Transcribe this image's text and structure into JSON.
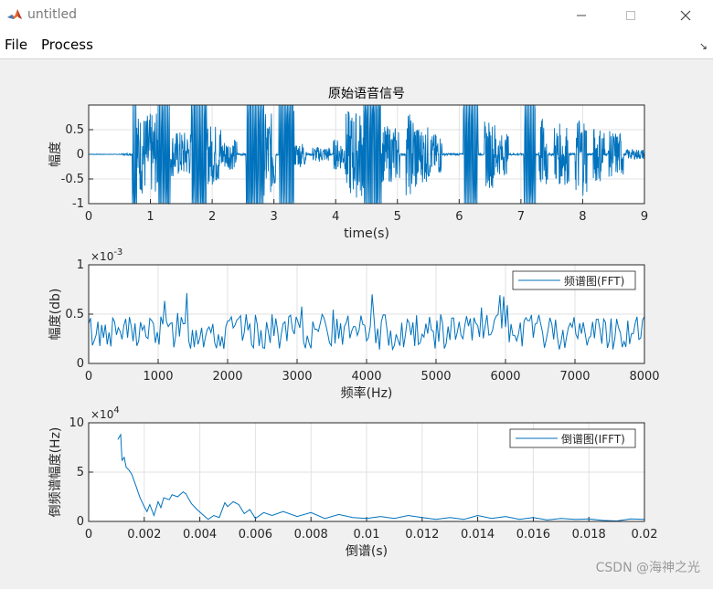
{
  "window": {
    "title": "untitled",
    "minimize_icon": "minimize-icon",
    "maximize_icon": "maximize-icon",
    "close_icon": "close-icon",
    "app_icon": "matlab-icon"
  },
  "menu": {
    "items": [
      "File",
      "Process"
    ],
    "dock_icon": "dock-arrow-icon"
  },
  "colors": {
    "line": "#0072bd",
    "grid": "#e2e2e2",
    "axes_bg": "#ffffff",
    "figure_bg": "#f0f0f0"
  },
  "chart_data": [
    {
      "type": "line",
      "title": "原始语音信号",
      "xlabel": "time(s)",
      "ylabel": "幅度",
      "xlim": [
        0,
        9.2
      ],
      "ylim": [
        -1,
        1
      ],
      "xticks": [
        "0",
        "1",
        "2",
        "3",
        "4",
        "5",
        "6",
        "7",
        "8",
        "9"
      ],
      "yticks": [
        "-1",
        "-0.5",
        "0",
        "0.5"
      ],
      "description_series": "speech waveform",
      "bursts": [
        {
          "start": 0.72,
          "end": 0.8,
          "amp": 1.0
        },
        {
          "start": 0.8,
          "end": 1.15,
          "amp": 0.8
        },
        {
          "start": 1.15,
          "end": 1.35,
          "amp": 1.0
        },
        {
          "start": 1.35,
          "end": 1.7,
          "amp": 0.45
        },
        {
          "start": 1.7,
          "end": 1.95,
          "amp": 1.0
        },
        {
          "start": 1.95,
          "end": 2.2,
          "amp": 0.6
        },
        {
          "start": 2.2,
          "end": 2.45,
          "amp": 0.3
        },
        {
          "start": 2.6,
          "end": 2.9,
          "amp": 1.0
        },
        {
          "start": 2.9,
          "end": 3.1,
          "amp": 0.8
        },
        {
          "start": 3.15,
          "end": 3.4,
          "amp": 1.0
        },
        {
          "start": 3.4,
          "end": 3.6,
          "amp": 0.25
        },
        {
          "start": 3.7,
          "end": 4.0,
          "amp": 0.15
        },
        {
          "start": 4.05,
          "end": 4.25,
          "amp": 0.3
        },
        {
          "start": 4.25,
          "end": 4.55,
          "amp": 0.85
        },
        {
          "start": 4.55,
          "end": 4.85,
          "amp": 1.0
        },
        {
          "start": 4.85,
          "end": 5.15,
          "amp": 0.55
        },
        {
          "start": 5.25,
          "end": 5.45,
          "amp": 0.8
        },
        {
          "start": 5.45,
          "end": 5.65,
          "amp": 0.55
        },
        {
          "start": 5.65,
          "end": 5.85,
          "amp": 0.4
        },
        {
          "start": 6.2,
          "end": 6.45,
          "amp": 0.9
        },
        {
          "start": 6.55,
          "end": 6.75,
          "amp": 0.65
        },
        {
          "start": 6.75,
          "end": 6.95,
          "amp": 0.4
        },
        {
          "start": 7.2,
          "end": 7.4,
          "amp": 1.0
        },
        {
          "start": 7.45,
          "end": 7.6,
          "amp": 0.7
        },
        {
          "start": 7.7,
          "end": 7.95,
          "amp": 0.6
        },
        {
          "start": 8.05,
          "end": 8.25,
          "amp": 0.8
        },
        {
          "start": 8.35,
          "end": 8.55,
          "amp": 0.55
        },
        {
          "start": 8.6,
          "end": 8.85,
          "amp": 0.45
        },
        {
          "start": 8.9,
          "end": 9.2,
          "amp": 0.1
        }
      ],
      "noise_amp": 0.02,
      "seed": 7
    },
    {
      "type": "line",
      "title": "",
      "xlabel": "频率(Hz)",
      "ylabel": "幅度(db)",
      "xlim": [
        0,
        8000
      ],
      "ylim": [
        0,
        0.001
      ],
      "exponent_label": "×10",
      "exponent_power": "-3",
      "xticks": [
        "0",
        "1000",
        "2000",
        "3000",
        "4000",
        "5000",
        "6000",
        "7000",
        "8000"
      ],
      "yticks": [
        "0",
        "0.5",
        "1"
      ],
      "legend": "频谱图(FFT)",
      "legend_position": "top-right",
      "mean": 0.00032,
      "spread": 0.00018,
      "num_points": 300,
      "seed": 13
    },
    {
      "type": "line",
      "title": "",
      "xlabel": "倒谱(s)",
      "ylabel": "倒频谱幅度(Hz)",
      "xlim": [
        0,
        0.02
      ],
      "ylim": [
        0,
        100000
      ],
      "exponent_label": "×10",
      "exponent_power": "4",
      "xticks": [
        "0",
        "0.002",
        "0.004",
        "0.006",
        "0.008",
        "0.01",
        "0.012",
        "0.014",
        "0.016",
        "0.018",
        "0.02"
      ],
      "yticks": [
        "0",
        "5",
        "10"
      ],
      "legend": "倒谱图(IFFT)",
      "legend_position": "top-right",
      "x": [
        0.00105,
        0.00115,
        0.0012,
        0.00128,
        0.00135,
        0.00145,
        0.00155,
        0.0017,
        0.00185,
        0.002,
        0.0021,
        0.0022,
        0.00235,
        0.0025,
        0.0026,
        0.0027,
        0.0029,
        0.003,
        0.0032,
        0.0034,
        0.0035,
        0.0037,
        0.0039,
        0.0041,
        0.0043,
        0.0045,
        0.0047,
        0.0049,
        0.005,
        0.0052,
        0.0054,
        0.0056,
        0.0058,
        0.006,
        0.0063,
        0.0066,
        0.007,
        0.0075,
        0.008,
        0.0085,
        0.009,
        0.0095,
        0.01,
        0.0105,
        0.011,
        0.0115,
        0.012,
        0.0125,
        0.013,
        0.0135,
        0.014,
        0.0145,
        0.015,
        0.0155,
        0.016,
        0.0165,
        0.017,
        0.0175,
        0.018,
        0.0185,
        0.019,
        0.0195,
        0.02
      ],
      "y": [
        83000,
        88000,
        62000,
        65000,
        55000,
        52000,
        48000,
        36000,
        24000,
        15000,
        10000,
        17000,
        6000,
        20000,
        14000,
        24000,
        22000,
        27000,
        25000,
        30000,
        28000,
        18000,
        12000,
        7000,
        2000,
        6000,
        4000,
        19000,
        15000,
        20000,
        17000,
        8000,
        12000,
        3000,
        9000,
        6000,
        10000,
        5000,
        9000,
        3000,
        7000,
        4000,
        3000,
        5000,
        3000,
        6000,
        4000,
        2000,
        4000,
        2000,
        6000,
        3000,
        5000,
        2000,
        4000,
        1500,
        3000,
        2000,
        2500,
        1000,
        500,
        2500,
        2000
      ]
    }
  ],
  "watermark": "CSDN @海神之光"
}
